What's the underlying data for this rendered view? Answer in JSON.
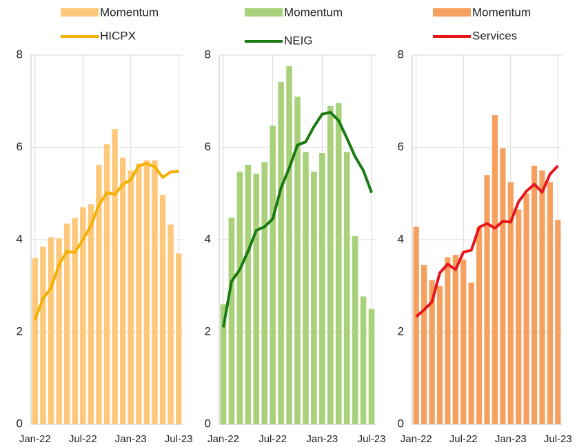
{
  "chart_data": [
    {
      "type": "bar",
      "categories": [
        "Jan-22",
        null,
        null,
        null,
        null,
        null,
        "Jul-22",
        null,
        null,
        null,
        null,
        null,
        "Jan-23",
        null,
        null,
        null,
        null,
        null,
        "Jul-23"
      ],
      "series": [
        {
          "name": "Momentum",
          "type": "bar",
          "color": "#fdc87a",
          "values": [
            3.6,
            3.85,
            4.05,
            4.03,
            4.35,
            4.47,
            4.7,
            4.77,
            5.62,
            6.07,
            6.4,
            5.78,
            5.5,
            5.65,
            5.72,
            5.72,
            4.97,
            4.33,
            3.7
          ]
        },
        {
          "name": "HICPX",
          "type": "line",
          "color": "#f5b000",
          "values": [
            2.27,
            2.72,
            2.95,
            3.45,
            3.75,
            3.72,
            4.0,
            4.3,
            4.75,
            5.02,
            4.98,
            5.2,
            5.3,
            5.6,
            5.65,
            5.58,
            5.35,
            5.47,
            5.48
          ]
        }
      ],
      "ylim": [
        0,
        8
      ],
      "yticks": [
        0,
        2,
        4,
        6,
        8
      ],
      "grid": true
    },
    {
      "type": "bar",
      "categories": [
        "Jan-22",
        null,
        null,
        null,
        null,
        null,
        "Jul-22",
        null,
        null,
        null,
        null,
        null,
        "Jan-23",
        null,
        null,
        null,
        null,
        null,
        "Jul-23"
      ],
      "series": [
        {
          "name": "Momentum",
          "type": "bar",
          "color": "#a9d17b",
          "values": [
            2.6,
            4.48,
            5.47,
            5.62,
            5.43,
            5.68,
            6.47,
            7.42,
            7.76,
            7.1,
            5.9,
            5.47,
            5.88,
            6.9,
            6.96,
            5.9,
            4.08,
            2.77,
            2.5
          ]
        },
        {
          "name": "NEIG",
          "type": "line",
          "color": "#1a7a12",
          "values": [
            2.1,
            3.1,
            3.35,
            3.75,
            4.2,
            4.28,
            4.45,
            5.12,
            5.55,
            6.05,
            6.12,
            6.45,
            6.72,
            6.76,
            6.58,
            6.2,
            5.8,
            5.5,
            5.02
          ]
        }
      ],
      "ylim": [
        0,
        8
      ],
      "yticks": [
        0,
        2,
        4,
        6,
        8
      ],
      "grid": true
    },
    {
      "type": "bar",
      "categories": [
        "Jan-22",
        null,
        null,
        null,
        null,
        null,
        "Jul-22",
        null,
        null,
        null,
        null,
        null,
        "Jan-23",
        null,
        null,
        null,
        null,
        null,
        "Jul-23"
      ],
      "series": [
        {
          "name": "Momentum",
          "type": "bar",
          "color": "#f5a05f",
          "values": [
            4.28,
            3.45,
            3.12,
            3.0,
            3.62,
            3.67,
            3.57,
            3.07,
            4.27,
            5.4,
            6.7,
            5.98,
            5.25,
            4.65,
            5.0,
            5.6,
            5.5,
            5.25,
            4.43
          ]
        },
        {
          "name": "Services",
          "type": "line",
          "color": "#e8141b",
          "values": [
            2.33,
            2.48,
            2.65,
            3.28,
            3.47,
            3.35,
            3.73,
            3.77,
            4.27,
            4.35,
            4.25,
            4.4,
            4.38,
            4.82,
            5.05,
            5.2,
            5.03,
            5.42,
            5.6
          ]
        }
      ],
      "ylim": [
        0,
        8
      ],
      "yticks": [
        0,
        2,
        4,
        6,
        8
      ],
      "grid": true
    }
  ]
}
